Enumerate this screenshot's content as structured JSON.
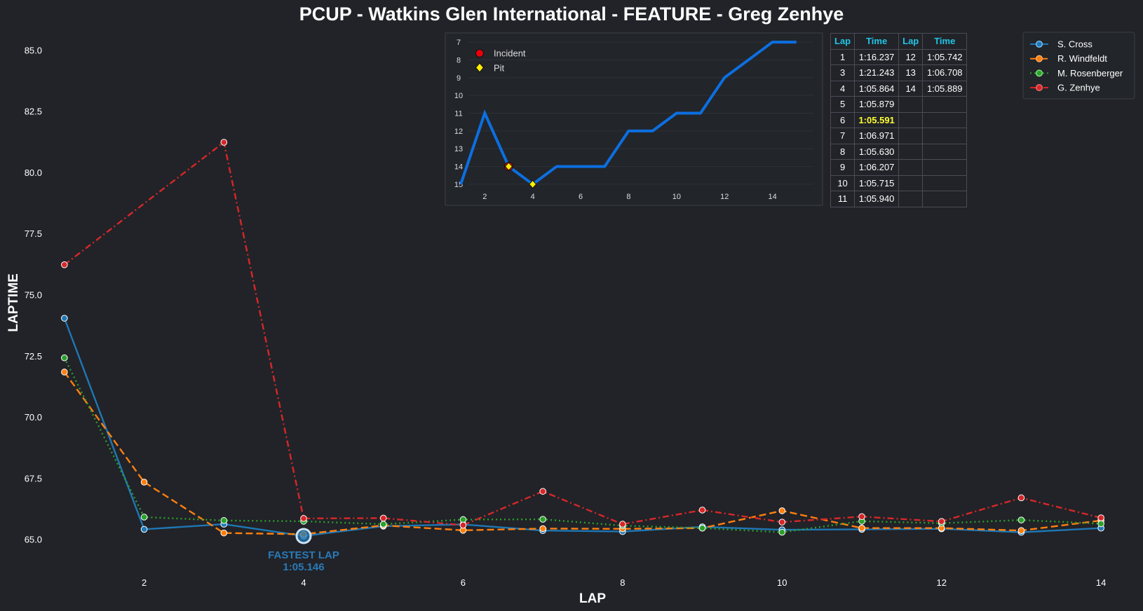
{
  "title": "PCUP - Watkins Glen International - FEATURE - Greg Zenhye",
  "chart_data": {
    "type": "line",
    "title": "PCUP - Watkins Glen International - FEATURE - Greg Zenhye",
    "xlabel": "LAP",
    "ylabel": "LAPTIME",
    "xlim": [
      0.5,
      14.5
    ],
    "ylim": [
      64.0,
      86.0
    ],
    "xticks": [
      2,
      4,
      6,
      8,
      10,
      12,
      14
    ],
    "yticks": [
      65.0,
      67.5,
      70.0,
      72.5,
      75.0,
      77.5,
      80.0,
      82.5,
      85.0
    ],
    "x": [
      1,
      2,
      3,
      4,
      5,
      6,
      7,
      8,
      9,
      10,
      11,
      12,
      13,
      14
    ],
    "legend_position": "top-right",
    "series": [
      {
        "name": "S. Cross",
        "color": "#1f77b4",
        "dash": "solid",
        "values": [
          74.05,
          65.42,
          65.63,
          65.15,
          65.55,
          65.62,
          65.37,
          65.33,
          65.52,
          65.4,
          65.42,
          65.44,
          65.3,
          65.47
        ]
      },
      {
        "name": "R. Windfeldt",
        "color": "#ff7f0e",
        "dash": "dashed",
        "values": [
          71.85,
          67.35,
          65.27,
          65.22,
          65.58,
          65.38,
          65.45,
          65.44,
          65.47,
          66.18,
          65.47,
          65.47,
          65.37,
          65.78
        ]
      },
      {
        "name": "M. Rosenberger",
        "color": "#2ca02c",
        "dash": "dotted",
        "values": [
          72.43,
          65.92,
          65.78,
          65.75,
          65.63,
          65.82,
          65.83,
          65.57,
          65.47,
          65.3,
          65.75,
          65.67,
          65.8,
          65.65
        ]
      },
      {
        "name": "G. Zenhye",
        "color": "#d62728",
        "dash": "dashdot",
        "values": [
          76.237,
          null,
          81.243,
          65.864,
          65.879,
          65.591,
          66.971,
          65.63,
          66.207,
          65.715,
          65.94,
          65.742,
          66.708,
          65.889
        ]
      }
    ],
    "annotation": {
      "label": "FASTEST LAP",
      "value": "1:05.146",
      "lap": 4,
      "laptime": 65.146
    },
    "inset": {
      "type": "line",
      "title": "",
      "x": [
        1,
        2,
        3,
        4,
        5,
        6,
        7,
        8,
        9,
        10,
        11,
        12,
        13,
        14,
        15
      ],
      "positions": [
        15,
        11,
        14,
        15,
        14,
        14,
        14,
        12,
        12,
        11,
        11,
        9,
        8,
        7,
        7
      ],
      "xticks": [
        2,
        4,
        6,
        8,
        10,
        12,
        14
      ],
      "yticks": [
        7,
        8,
        9,
        10,
        11,
        12,
        13,
        14,
        15
      ],
      "ylim": [
        15.2,
        6.8
      ],
      "xlim": [
        0.5,
        16.0
      ],
      "color": "#0c6fe0",
      "incident_laps": [
        3
      ],
      "pit_laps": [
        3,
        4
      ],
      "legend": [
        {
          "label": "Incident",
          "marker": "red-circle"
        },
        {
          "label": "Pit",
          "marker": "yellow-diamond"
        }
      ]
    }
  },
  "table": {
    "headers": [
      "Lap",
      "Time",
      "Lap",
      "Time"
    ],
    "rows": [
      [
        "1",
        "1:16.237",
        "12",
        "1:05.742"
      ],
      [
        "3",
        "1:21.243",
        "13",
        "1:06.708"
      ],
      [
        "4",
        "1:05.864",
        "14",
        "1:05.889"
      ],
      [
        "5",
        "1:05.879",
        "",
        ""
      ],
      [
        "6",
        "1:05.591",
        "",
        ""
      ],
      [
        "7",
        "1:06.971",
        "",
        ""
      ],
      [
        "8",
        "1:05.630",
        "",
        ""
      ],
      [
        "9",
        "1:06.207",
        "",
        ""
      ],
      [
        "10",
        "1:05.715",
        "",
        ""
      ],
      [
        "11",
        "1:05.940",
        "",
        ""
      ]
    ],
    "best_time": "1:05.591",
    "colors": {
      "header": "#23c4e8",
      "best": "#ffff33"
    }
  }
}
